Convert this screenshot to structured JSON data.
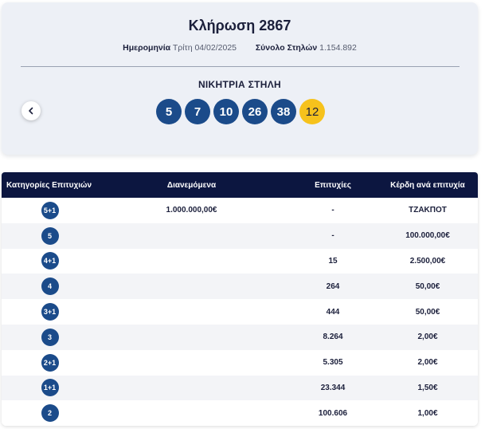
{
  "draw": {
    "title": "Κλήρωση 2867",
    "date_label": "Ημερομηνία",
    "date_value": "Τρίτη 04/02/2025",
    "columns_label": "Σύνολο Στηλών",
    "columns_value": "1.154.892",
    "winning_label": "ΝΙΚΗΤΡΙΑ ΣΤΗΛΗ",
    "numbers": [
      "5",
      "7",
      "10",
      "26",
      "38"
    ],
    "bonus": "12",
    "prev_icon": "chevron-left-icon",
    "colors": {
      "ball": "#1b4b8a",
      "bonus": "#f6c21c",
      "header": "#0c1640"
    }
  },
  "table": {
    "headers": [
      "Κατηγορίες Επιτυχιών",
      "Διανεμόμενα",
      "Επιτυχίες",
      "Κέρδη ανά επιτυχία"
    ],
    "rows": [
      {
        "category": "5+1",
        "distributed": "1.000.000,00€",
        "winners": "-",
        "prize": "ΤΖΑΚΠΟΤ"
      },
      {
        "category": "5",
        "distributed": "",
        "winners": "-",
        "prize": "100.000,00€"
      },
      {
        "category": "4+1",
        "distributed": "",
        "winners": "15",
        "prize": "2.500,00€"
      },
      {
        "category": "4",
        "distributed": "",
        "winners": "264",
        "prize": "50,00€"
      },
      {
        "category": "3+1",
        "distributed": "",
        "winners": "444",
        "prize": "50,00€"
      },
      {
        "category": "3",
        "distributed": "",
        "winners": "8.264",
        "prize": "2,00€"
      },
      {
        "category": "2+1",
        "distributed": "",
        "winners": "5.305",
        "prize": "2,00€"
      },
      {
        "category": "1+1",
        "distributed": "",
        "winners": "23.344",
        "prize": "1,50€"
      },
      {
        "category": "2",
        "distributed": "",
        "winners": "100.606",
        "prize": "1,00€"
      }
    ]
  }
}
